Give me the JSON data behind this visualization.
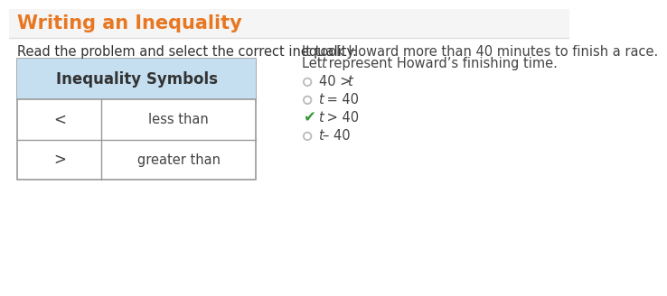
{
  "title": "Writing an Inequality",
  "title_color": "#E87722",
  "title_fontsize": 15,
  "bg_color": "#ffffff",
  "title_bar_bg": "#f5f5f5",
  "title_bar_separator": "#dddddd",
  "subtitle": "Read the problem and select the correct inequality.",
  "subtitle_fontsize": 10.5,
  "table_header": "Inequality Symbols",
  "table_header_bg": "#c5dff0",
  "table_border_color": "#999999",
  "table_rows": [
    {
      "symbol": "<",
      "label": "less than"
    },
    {
      "symbol": ">",
      "label": "greater than"
    }
  ],
  "problem_text_line1": "It took Howard more than 40 minutes to finish a race.",
  "problem_text_line2": "Let t represent Howard’s finishing time.",
  "problem_text_line2_italic_t": true,
  "options": [
    {
      "parts": [
        [
          "40 > ",
          false
        ],
        [
          "t",
          true
        ]
      ],
      "selected": false
    },
    {
      "parts": [
        [
          "t",
          true
        ],
        [
          " = 40",
          false
        ]
      ],
      "selected": false
    },
    {
      "parts": [
        [
          "t",
          true
        ],
        [
          " > 40",
          false
        ]
      ],
      "selected": true
    },
    {
      "parts": [
        [
          "t",
          true
        ],
        [
          "– 40",
          false
        ]
      ],
      "selected": false
    }
  ],
  "check_color": "#3a9a3a",
  "radio_color": "#bbbbbb",
  "option_fontsize": 10.5,
  "problem_fontsize": 10.5,
  "table_symbol_fontsize": 12,
  "table_label_fontsize": 10.5
}
